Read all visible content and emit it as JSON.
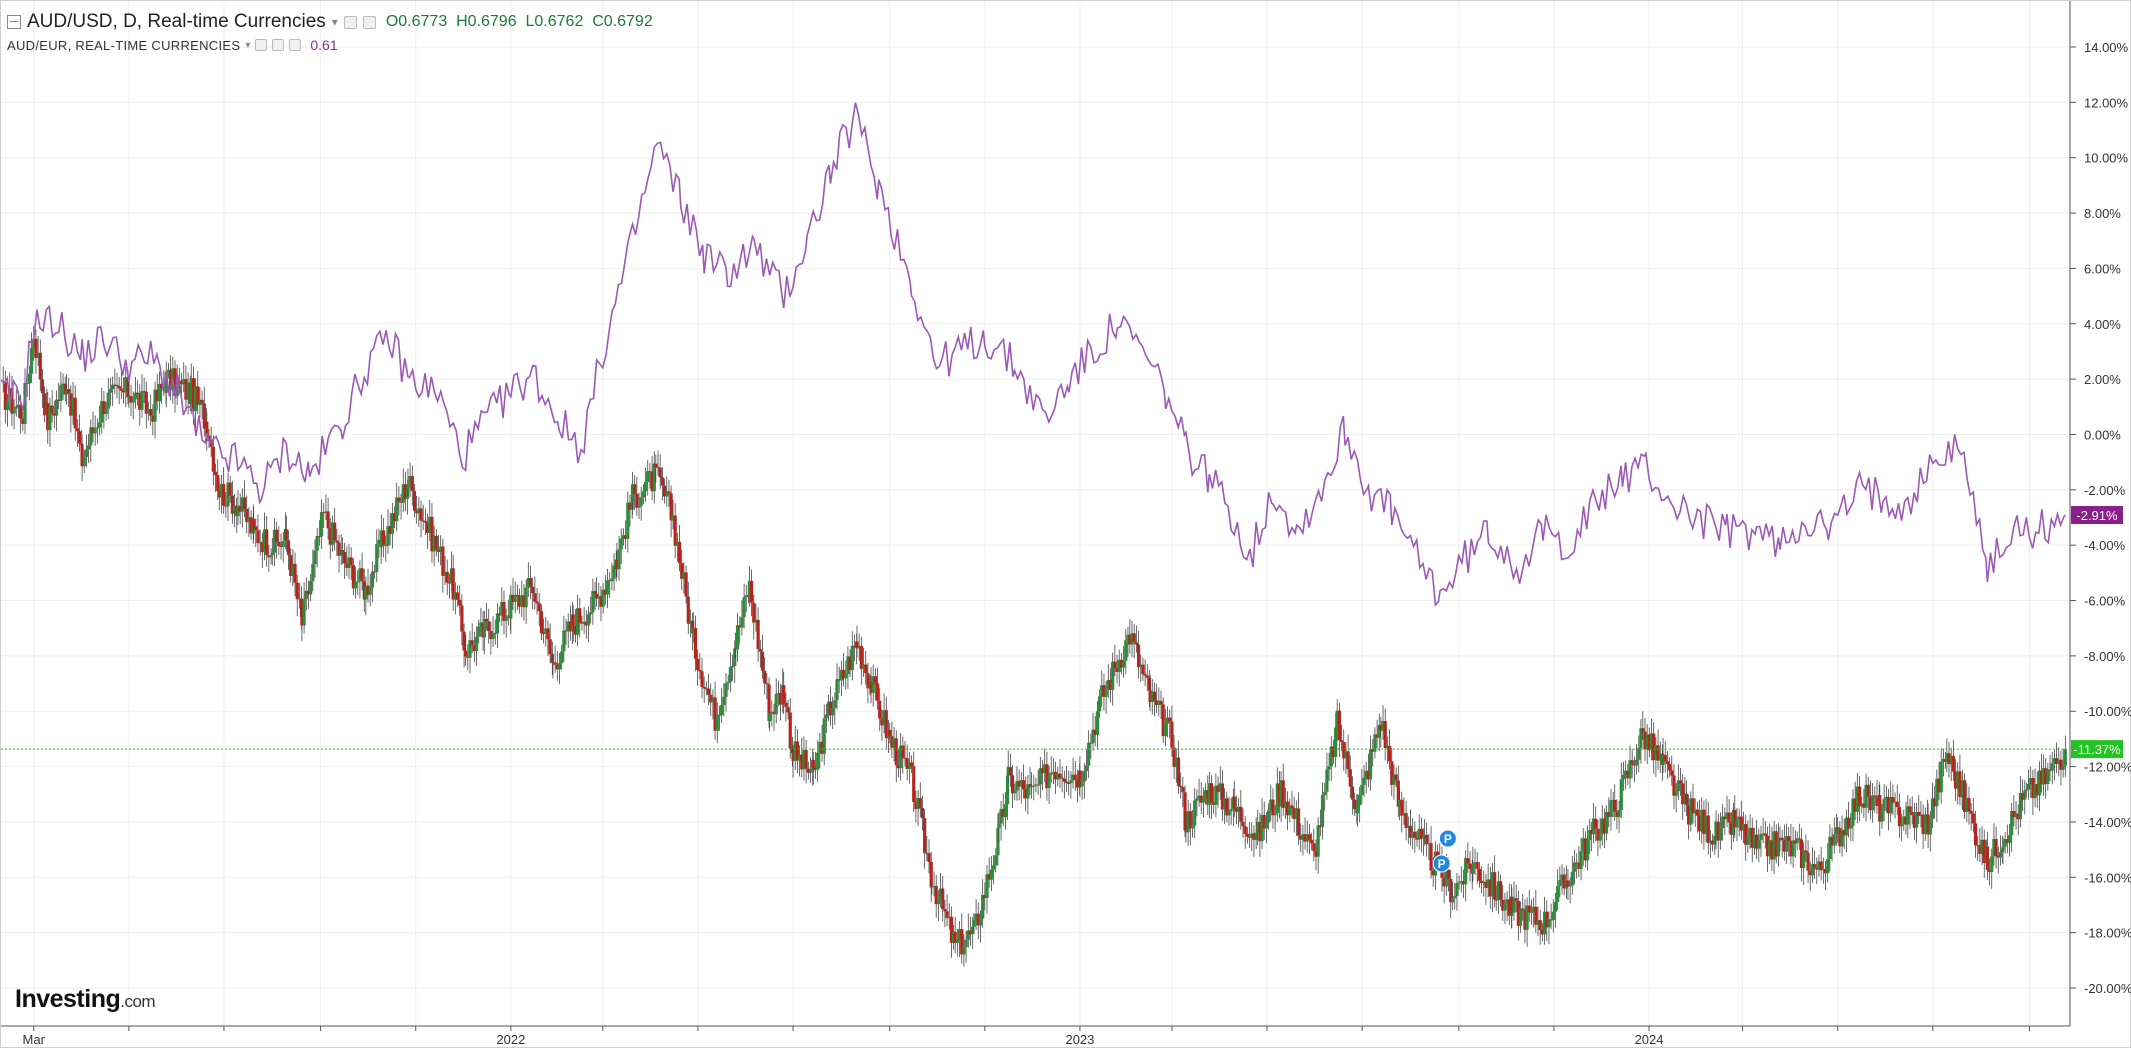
{
  "legend": {
    "main_title": "AUD/USD, D, Real-time Currencies",
    "open": "O0.6773",
    "high": "H0.6796",
    "low": "L0.6762",
    "close": "C0.6792",
    "compare_title": "AUD/EUR, REAL-TIME CURRENCIES",
    "compare_value": "0.61"
  },
  "logo": {
    "text": "Investing",
    "suffix": ".com"
  },
  "colors": {
    "up": "#2e8b3a",
    "down": "#b3261e",
    "compare": "#9b59b6",
    "compare_badge": "#8b1e8b",
    "current_badge": "#22c322",
    "grid": "#eeeeee"
  },
  "chart_data": {
    "type": "line",
    "title": "AUD/USD, D, Real-time Currencies",
    "xlabel": "",
    "ylabel": "",
    "y_unit": "%",
    "ylim": [
      -20.8,
      14.9
    ],
    "y_ticks": [
      14,
      12,
      10,
      8,
      6,
      4,
      2,
      0,
      -2,
      -4,
      -6,
      -8,
      -10,
      -12,
      -14,
      -16,
      -18,
      -20
    ],
    "y_tick_labels": [
      "14.00%",
      "12.00%",
      "10.00%",
      "8.00%",
      "6.00%",
      "4.00%",
      "2.00%",
      "0.00%",
      "-2.00%",
      "-4.00%",
      "-6.00%",
      "-8.00%",
      "-10.00%",
      "-12.00%",
      "-14.00%",
      "-16.00%",
      "-18.00%",
      "-20.00%"
    ],
    "xlim": [
      "2021-02-08",
      "2024-09-27"
    ],
    "x_tick_labels": [
      {
        "date": "2021-03-01",
        "label": "Mar"
      },
      {
        "date": "2022-01-01",
        "label": "2022"
      },
      {
        "date": "2023-01-01",
        "label": "2023"
      },
      {
        "date": "2024-01-01",
        "label": "2024"
      }
    ],
    "x_minor_ticks": [
      "2021-05-01",
      "2021-07-01",
      "2021-09-01",
      "2021-11-01",
      "2022-03-01",
      "2022-05-01",
      "2022-07-01",
      "2022-09-01",
      "2022-11-01",
      "2023-03-01",
      "2023-05-01",
      "2023-07-01",
      "2023-09-01",
      "2023-11-01",
      "2024-03-01",
      "2024-05-01",
      "2024-07-01",
      "2024-09-01"
    ],
    "grid": true,
    "legend_position": "top-left",
    "current_value_line": -11.37,
    "series": [
      {
        "name": "AUD/USD, D, Real-time Currencies",
        "style": "candles",
        "points": [
          [
            "2021-02-08",
            1.5
          ],
          [
            "2021-02-22",
            0.8
          ],
          [
            "2021-03-01",
            3.7
          ],
          [
            "2021-03-10",
            0.5
          ],
          [
            "2021-03-22",
            2.0
          ],
          [
            "2021-04-01",
            -0.9
          ],
          [
            "2021-04-15",
            1.2
          ],
          [
            "2021-05-01",
            1.6
          ],
          [
            "2021-05-15",
            0.8
          ],
          [
            "2021-05-25",
            2.0
          ],
          [
            "2021-06-10",
            1.5
          ],
          [
            "2021-06-20",
            0.5
          ],
          [
            "2021-06-28",
            -2.0
          ],
          [
            "2021-07-10",
            -2.5
          ],
          [
            "2021-07-20",
            -3.5
          ],
          [
            "2021-08-01",
            -4.0
          ],
          [
            "2021-08-10",
            -3.8
          ],
          [
            "2021-08-20",
            -6.8
          ],
          [
            "2021-09-03",
            -2.9
          ],
          [
            "2021-09-15",
            -4.5
          ],
          [
            "2021-09-30",
            -5.6
          ],
          [
            "2021-10-10",
            -4.0
          ],
          [
            "2021-10-27",
            -1.7
          ],
          [
            "2021-11-10",
            -3.5
          ],
          [
            "2021-11-25",
            -5.5
          ],
          [
            "2021-12-03",
            -7.8
          ],
          [
            "2021-12-15",
            -7.1
          ],
          [
            "2022-01-01",
            -6.2
          ],
          [
            "2022-01-15",
            -5.5
          ],
          [
            "2022-01-28",
            -8.3
          ],
          [
            "2022-02-10",
            -6.8
          ],
          [
            "2022-02-25",
            -6.0
          ],
          [
            "2022-03-10",
            -4.5
          ],
          [
            "2022-03-20",
            -2.3
          ],
          [
            "2022-04-04",
            -1.5
          ],
          [
            "2022-04-15",
            -3.0
          ],
          [
            "2022-04-28",
            -7.5
          ],
          [
            "2022-05-12",
            -10.2
          ],
          [
            "2022-05-25",
            -7.5
          ],
          [
            "2022-06-03",
            -5.5
          ],
          [
            "2022-06-16",
            -10.0
          ],
          [
            "2022-06-25",
            -9.2
          ],
          [
            "2022-07-01",
            -11.5
          ],
          [
            "2022-07-14",
            -12.3
          ],
          [
            "2022-07-25",
            -9.8
          ],
          [
            "2022-08-11",
            -7.5
          ],
          [
            "2022-08-20",
            -9.0
          ],
          [
            "2022-09-01",
            -11.0
          ],
          [
            "2022-09-15",
            -12.5
          ],
          [
            "2022-09-28",
            -16.0
          ],
          [
            "2022-10-13",
            -18.5
          ],
          [
            "2022-10-25",
            -18.0
          ],
          [
            "2022-11-10",
            -14.5
          ],
          [
            "2022-11-16",
            -12.5
          ],
          [
            "2022-12-01",
            -13.0
          ],
          [
            "2022-12-15",
            -12.0
          ],
          [
            "2023-01-01",
            -12.3
          ],
          [
            "2023-01-15",
            -9.5
          ],
          [
            "2023-02-02",
            -7.2
          ],
          [
            "2023-02-15",
            -9.5
          ],
          [
            "2023-03-01",
            -11.0
          ],
          [
            "2023-03-10",
            -14.0
          ],
          [
            "2023-03-25",
            -12.8
          ],
          [
            "2023-04-10",
            -13.5
          ],
          [
            "2023-04-25",
            -14.5
          ],
          [
            "2023-05-10",
            -12.8
          ],
          [
            "2023-05-31",
            -15.2
          ],
          [
            "2023-06-15",
            -10.5
          ],
          [
            "2023-06-28",
            -13.5
          ],
          [
            "2023-07-13",
            -10.3
          ],
          [
            "2023-07-25",
            -13.5
          ],
          [
            "2023-08-10",
            -15.0
          ],
          [
            "2023-08-28",
            -16.5
          ],
          [
            "2023-09-10",
            -15.5
          ],
          [
            "2023-09-25",
            -16.5
          ],
          [
            "2023-10-05",
            -17.2
          ],
          [
            "2023-10-26",
            -17.6
          ],
          [
            "2023-11-10",
            -16.0
          ],
          [
            "2023-11-25",
            -14.5
          ],
          [
            "2023-12-10",
            -13.5
          ],
          [
            "2023-12-28",
            -10.8
          ],
          [
            "2024-01-10",
            -12.0
          ],
          [
            "2024-01-25",
            -13.5
          ],
          [
            "2024-02-13",
            -14.5
          ],
          [
            "2024-02-25",
            -14.0
          ],
          [
            "2024-03-10",
            -15.0
          ],
          [
            "2024-03-25",
            -14.8
          ],
          [
            "2024-04-05",
            -15.0
          ],
          [
            "2024-04-19",
            -15.8
          ],
          [
            "2024-05-01",
            -14.5
          ],
          [
            "2024-05-15",
            -13.0
          ],
          [
            "2024-05-28",
            -13.5
          ],
          [
            "2024-06-15",
            -13.8
          ],
          [
            "2024-06-28",
            -14.0
          ],
          [
            "2024-07-10",
            -11.5
          ],
          [
            "2024-07-20",
            -13.0
          ],
          [
            "2024-08-05",
            -15.5
          ],
          [
            "2024-08-15",
            -14.5
          ],
          [
            "2024-08-30",
            -13.0
          ],
          [
            "2024-09-10",
            -12.5
          ],
          [
            "2024-09-24",
            -11.37
          ]
        ]
      },
      {
        "name": "AUD/EUR, REAL-TIME CURRENCIES",
        "style": "line",
        "points": [
          [
            "2021-02-08",
            1.5
          ],
          [
            "2021-02-22",
            1.2
          ],
          [
            "2021-03-01",
            4.0
          ],
          [
            "2021-03-15",
            4.1
          ],
          [
            "2021-04-01",
            2.8
          ],
          [
            "2021-04-15",
            3.5
          ],
          [
            "2021-05-01",
            2.5
          ],
          [
            "2021-05-15",
            2.8
          ],
          [
            "2021-06-01",
            1.5
          ],
          [
            "2021-06-20",
            -0.5
          ],
          [
            "2021-07-10",
            -1.0
          ],
          [
            "2021-07-25",
            -2.0
          ],
          [
            "2021-08-10",
            -0.5
          ],
          [
            "2021-08-25",
            -1.5
          ],
          [
            "2021-09-15",
            0.5
          ],
          [
            "2021-10-01",
            2.5
          ],
          [
            "2021-10-15",
            3.5
          ],
          [
            "2021-10-28",
            2.0
          ],
          [
            "2021-11-15",
            1.5
          ],
          [
            "2021-12-01",
            -0.8
          ],
          [
            "2021-12-15",
            0.5
          ],
          [
            "2022-01-01",
            1.5
          ],
          [
            "2022-01-15",
            2.2
          ],
          [
            "2022-02-01",
            0.5
          ],
          [
            "2022-02-15",
            -0.5
          ],
          [
            "2022-03-01",
            3.0
          ],
          [
            "2022-03-20",
            7.0
          ],
          [
            "2022-04-05",
            10.5
          ],
          [
            "2022-04-20",
            8.5
          ],
          [
            "2022-05-05",
            6.5
          ],
          [
            "2022-05-20",
            5.8
          ],
          [
            "2022-06-06",
            6.8
          ],
          [
            "2022-06-25",
            5.0
          ],
          [
            "2022-07-10",
            7.0
          ],
          [
            "2022-07-25",
            9.5
          ],
          [
            "2022-08-10",
            11.5
          ],
          [
            "2022-08-25",
            9.0
          ],
          [
            "2022-09-15",
            5.5
          ],
          [
            "2022-10-01",
            2.5
          ],
          [
            "2022-10-15",
            3.0
          ],
          [
            "2022-11-01",
            3.5
          ],
          [
            "2022-11-20",
            2.5
          ],
          [
            "2022-12-10",
            0.5
          ],
          [
            "2022-12-25",
            2.0
          ],
          [
            "2023-01-10",
            3.0
          ],
          [
            "2023-01-25",
            4.0
          ],
          [
            "2023-02-10",
            3.0
          ],
          [
            "2023-02-25",
            1.5
          ],
          [
            "2023-03-10",
            -0.5
          ],
          [
            "2023-03-25",
            -1.5
          ],
          [
            "2023-04-10",
            -3.0
          ],
          [
            "2023-04-20",
            -4.5
          ],
          [
            "2023-05-05",
            -2.0
          ],
          [
            "2023-05-20",
            -3.5
          ],
          [
            "2023-06-05",
            -2.0
          ],
          [
            "2023-06-20",
            0.2
          ],
          [
            "2023-07-05",
            -2.0
          ],
          [
            "2023-07-20",
            -2.8
          ],
          [
            "2023-08-05",
            -4.5
          ],
          [
            "2023-08-20",
            -5.8
          ],
          [
            "2023-09-05",
            -4.5
          ],
          [
            "2023-09-20",
            -3.5
          ],
          [
            "2023-10-10",
            -4.8
          ],
          [
            "2023-10-25",
            -3.5
          ],
          [
            "2023-11-10",
            -4.0
          ],
          [
            "2023-11-28",
            -2.5
          ],
          [
            "2023-12-15",
            -1.5
          ],
          [
            "2023-12-30",
            -1.2
          ],
          [
            "2024-01-15",
            -2.5
          ],
          [
            "2024-02-01",
            -3.0
          ],
          [
            "2024-02-20",
            -3.5
          ],
          [
            "2024-03-10",
            -3.5
          ],
          [
            "2024-03-25",
            -4.0
          ],
          [
            "2024-04-10",
            -3.0
          ],
          [
            "2024-04-25",
            -3.5
          ],
          [
            "2024-05-15",
            -2.0
          ],
          [
            "2024-05-30",
            -2.2
          ],
          [
            "2024-06-15",
            -2.5
          ],
          [
            "2024-07-01",
            -1.0
          ],
          [
            "2024-07-15",
            -0.5
          ],
          [
            "2024-07-25",
            -1.5
          ],
          [
            "2024-08-05",
            -5.0
          ],
          [
            "2024-08-20",
            -3.5
          ],
          [
            "2024-09-05",
            -3.5
          ],
          [
            "2024-09-24",
            -2.91
          ]
        ]
      }
    ],
    "badges": [
      {
        "series": "AUD/EUR, REAL-TIME CURRENCIES",
        "label": "-2.91%",
        "value": -2.91
      },
      {
        "series": "AUD/USD, D, Real-time Currencies",
        "label": "-11.37%",
        "value": -11.37
      }
    ],
    "annotations": [
      {
        "label": "P",
        "date": "2023-08-25",
        "value": -14.6
      },
      {
        "label": "P",
        "date": "2023-08-21",
        "value": -15.5
      }
    ]
  }
}
